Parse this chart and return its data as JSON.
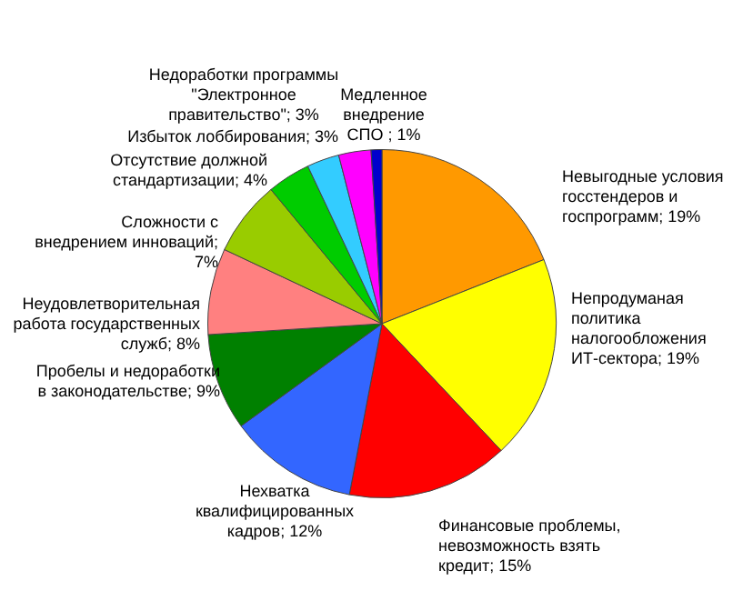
{
  "chart_data": {
    "type": "pie",
    "categories": [
      "Невыгодные условия госстендеров и госпрограмм; 19%",
      "Непродуманая политика налогообложения ИТ-сектора; 19%",
      "Финансовые проблемы, невозможность взять кредит; 15%",
      "Нехватка квалифицированных кадров; 12%",
      "Пробелы и недоработки в законодательстве; 9%",
      "Неудовлетворительная работа государственных служб; 8%",
      "Сложности с внедрением инноваций; 7%",
      "Отсутствие должной стандартизации; 4%",
      "Недоработки программы \"Электронное правительство\"; 3%",
      "Избыток лоббирования; 3%",
      "Медленное внедрение СПО ; 1%"
    ],
    "values": [
      19,
      19,
      15,
      12,
      9,
      8,
      7,
      4,
      3,
      3,
      1
    ],
    "colors": [
      "#ff9900",
      "#ffff00",
      "#ff0000",
      "#3366ff",
      "#008000",
      "#ff8080",
      "#99cc00",
      "#00cc00",
      "#33ccff",
      "#ff00ff",
      "#0000cc"
    ],
    "legend": false
  }
}
